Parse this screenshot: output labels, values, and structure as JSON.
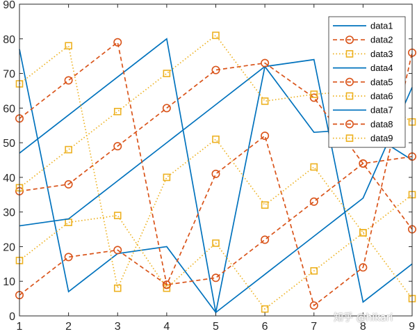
{
  "chart_data": {
    "type": "line",
    "x": [
      1,
      2,
      3,
      4,
      5,
      6,
      7,
      8,
      9
    ],
    "xlim": [
      1,
      9
    ],
    "ylim": [
      0,
      90
    ],
    "xticks": [
      1,
      2,
      3,
      4,
      5,
      6,
      7,
      8,
      9
    ],
    "yticks": [
      0,
      10,
      20,
      30,
      40,
      50,
      60,
      70,
      80,
      90
    ],
    "grid": false,
    "legend_position": "top-right",
    "series": [
      {
        "name": "data1",
        "style": "solid",
        "marker": "none",
        "color": "#0072BD",
        "values": [
          77,
          7,
          18,
          20,
          1,
          72,
          74,
          4,
          15
        ]
      },
      {
        "name": "data2",
        "style": "dashed",
        "marker": "circle",
        "color": "#D95319",
        "values": [
          6,
          17,
          19,
          9,
          11,
          22,
          33,
          44,
          25
        ]
      },
      {
        "name": "data3",
        "style": "dotted",
        "marker": "square",
        "color": "#EDB120",
        "values": [
          16,
          27,
          29,
          8,
          21,
          2,
          13,
          24,
          35
        ]
      },
      {
        "name": "data4",
        "style": "solid",
        "marker": "none",
        "color": "#0072BD",
        "values": [
          26,
          28,
          39,
          50,
          61,
          72,
          53,
          54,
          45
        ]
      },
      {
        "name": "data5",
        "style": "dashed",
        "marker": "circle",
        "color": "#D95319",
        "values": [
          36,
          38,
          49,
          60,
          71,
          73,
          63,
          44,
          46
        ]
      },
      {
        "name": "data6",
        "style": "dotted",
        "marker": "square",
        "color": "#EDB120",
        "values": [
          37,
          48,
          59,
          70,
          81,
          62,
          64,
          65,
          56
        ]
      },
      {
        "name": "data7",
        "style": "solid",
        "marker": "none",
        "color": "#0072BD",
        "values": [
          47,
          58,
          69,
          80,
          1,
          12,
          23,
          34,
          66
        ]
      },
      {
        "name": "data8",
        "style": "dashed",
        "marker": "circle",
        "color": "#D95319",
        "values": [
          57,
          68,
          79,
          9,
          41,
          52,
          3,
          14,
          76
        ]
      },
      {
        "name": "data9",
        "style": "dotted",
        "marker": "square",
        "color": "#EDB120",
        "values": [
          67,
          78,
          8,
          40,
          51,
          32,
          43,
          24,
          5
        ]
      }
    ]
  },
  "watermark": "知乎 @hikari"
}
